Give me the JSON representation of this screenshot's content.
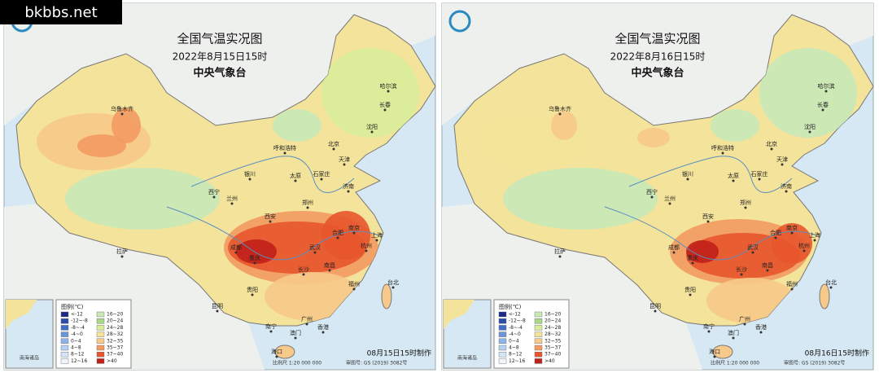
{
  "watermark": "bkbbs.net",
  "maps": [
    {
      "title": "全国气温实况图",
      "time": "2022年8月15日15时",
      "agency": "中央气象台",
      "made": "08月15日15时制作"
    },
    {
      "title": "全国气温实况图",
      "time": "2022年8月16日15时",
      "agency": "中央气象台",
      "made": "08月16日15时制作"
    }
  ],
  "legend": {
    "title": "图例(℃)",
    "items": [
      {
        "label": "<-12",
        "color": "#1b2a8a"
      },
      {
        "label": "-12~-8",
        "color": "#2b4ea8"
      },
      {
        "label": "-8~-4",
        "color": "#3f6fc7"
      },
      {
        "label": "-4~0",
        "color": "#6b95d8"
      },
      {
        "label": "0~4",
        "color": "#8fb3e6"
      },
      {
        "label": "4~8",
        "color": "#b4cff0"
      },
      {
        "label": "8~12",
        "color": "#d2e4f6"
      },
      {
        "label": "12~16",
        "color": "#eef5fb"
      },
      {
        "label": "16~20",
        "color": "#c8e8b8"
      },
      {
        "label": "20~24",
        "color": "#a8d888"
      },
      {
        "label": "24~28",
        "color": "#d8ec9a"
      },
      {
        "label": "28~32",
        "color": "#f4e39a"
      },
      {
        "label": "32~35",
        "color": "#f7c98a"
      },
      {
        "label": "35~37",
        "color": "#f29a62"
      },
      {
        "label": "37~40",
        "color": "#e8552c"
      },
      {
        "label": ">40",
        "color": "#c0201a"
      }
    ]
  },
  "scale": "比例尺 1:20 000 000",
  "approval": "审图号: GS (2019) 3082号",
  "inset": "南海诸岛",
  "cities": [
    "乌鲁木齐",
    "哈尔滨",
    "长春",
    "沈阳",
    "北京",
    "天津",
    "呼和浩特",
    "银川",
    "太原",
    "石家庄",
    "济南",
    "西宁",
    "兰州",
    "郑州",
    "西安",
    "合肥",
    "南京",
    "上海",
    "杭州",
    "武汉",
    "成都",
    "重庆",
    "长沙",
    "南昌",
    "拉萨",
    "贵阳",
    "昆明",
    "福州",
    "台北",
    "广州",
    "南宁",
    "澳门",
    "香港",
    "海口"
  ]
}
